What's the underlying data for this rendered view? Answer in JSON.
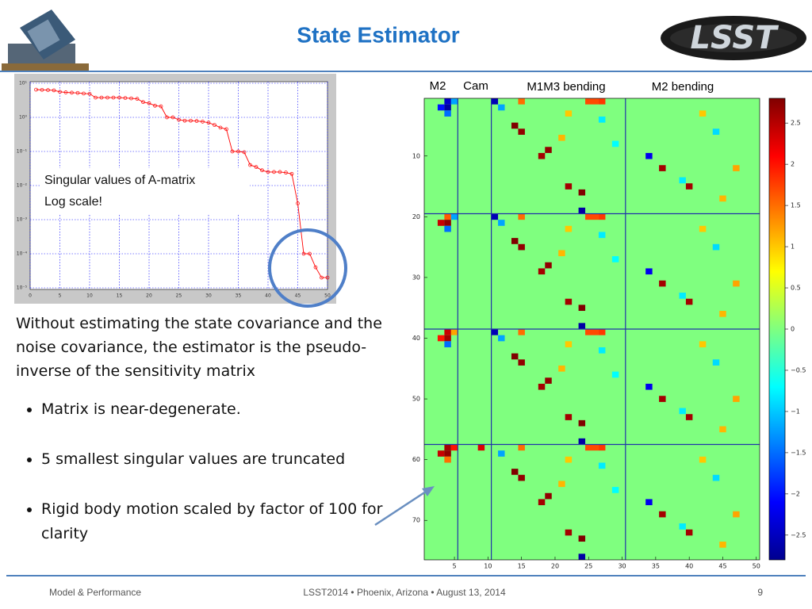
{
  "title": "State Estimator",
  "logo": "LSST",
  "body": {
    "paragraph": "Without estimating the state covariance and the noise covariance, the estimator is the pseudo-inverse of the sensitivity matrix",
    "bullets": [
      "Matrix is near-degenerate.",
      "5 smallest singular values are truncated",
      "Rigid body motion scaled by factor of 100 for clarity"
    ]
  },
  "footer": {
    "left": "Model & Performance",
    "center": "LSST2014 • Phoenix, Arizona • August 13, 2014",
    "page": "9"
  },
  "chart_data": [
    {
      "type": "line",
      "annotations": [
        "Singular values of A-matrix",
        "Log scale!"
      ],
      "color": "#ff0000",
      "log_y": true,
      "grid": true,
      "x": [
        1,
        2,
        3,
        4,
        5,
        6,
        7,
        8,
        9,
        10,
        11,
        12,
        13,
        14,
        15,
        16,
        17,
        18,
        19,
        20,
        21,
        22,
        23,
        24,
        25,
        26,
        27,
        28,
        29,
        30,
        31,
        32,
        33,
        34,
        35,
        36,
        37,
        38,
        39,
        40,
        41,
        42,
        43,
        44,
        45,
        46,
        47,
        48,
        49,
        50
      ],
      "values": [
        6.5,
        6.4,
        6.3,
        6.2,
        5.6,
        5.4,
        5.3,
        5.2,
        5.0,
        4.9,
        3.8,
        3.8,
        3.8,
        3.8,
        3.8,
        3.7,
        3.6,
        3.5,
        2.8,
        2.6,
        2.2,
        2.1,
        1.0,
        1.0,
        0.85,
        0.8,
        0.8,
        0.78,
        0.75,
        0.7,
        0.6,
        0.5,
        0.45,
        0.1,
        0.1,
        0.095,
        0.04,
        0.035,
        0.028,
        0.025,
        0.025,
        0.025,
        0.024,
        0.022,
        0.003,
        0.0001,
        0.0001,
        4e-05,
        2e-05,
        2e-05
      ],
      "xlim": [
        0,
        50
      ],
      "xticks": [
        0,
        5,
        10,
        15,
        20,
        25,
        30,
        35,
        40,
        45,
        50
      ],
      "ylim": [
        1e-05,
        10
      ],
      "yticks": [
        {
          "value": 10,
          "label": "10¹"
        },
        {
          "value": 1,
          "label": "10⁰"
        },
        {
          "value": 0.1,
          "label": "10⁻¹"
        },
        {
          "value": 0.01,
          "label": "10⁻²"
        },
        {
          "value": 0.001,
          "label": "10⁻³"
        },
        {
          "value": 0.0001,
          "label": "10⁻⁴"
        },
        {
          "value": 1e-05,
          "label": "10⁻⁵"
        }
      ]
    },
    {
      "type": "heatmap",
      "column_groups": [
        "M2",
        "Cam",
        "M1M3 bending",
        "M2 bending"
      ],
      "xlim": [
        0.5,
        50.5
      ],
      "ylim": [
        0.5,
        76.5
      ],
      "xticks": [
        5,
        10,
        15,
        20,
        25,
        30,
        35,
        40,
        45,
        50
      ],
      "yticks": [
        10,
        20,
        30,
        40,
        50,
        60,
        70
      ],
      "separators_x": [
        5.5,
        10.5,
        30.5
      ],
      "separators_y": [
        19.5,
        38.5,
        57.5
      ],
      "zlim": [
        -2.8,
        2.8
      ],
      "zticks": [
        {
          "value": 2.5,
          "label": "2.5"
        },
        2,
        {
          "value": 1.5,
          "label": "1.5"
        },
        1,
        {
          "value": 0.5,
          "label": "0.5"
        },
        0,
        {
          "value": -0.5,
          "label": "−0.5"
        },
        {
          "value": -1,
          "label": "−1"
        },
        {
          "value": -1.5,
          "label": "−1.5"
        },
        {
          "value": -2,
          "label": "−2"
        },
        {
          "value": -2.5,
          "label": "−2.5"
        }
      ],
      "x": [
        4,
        5,
        3,
        4,
        4,
        11,
        12,
        15,
        25,
        26,
        27,
        14,
        15,
        18,
        19,
        22,
        24,
        22,
        27,
        21,
        29,
        34,
        42,
        44,
        47,
        39,
        45,
        24,
        40,
        36,
        4,
        5,
        3,
        4,
        4,
        11,
        12,
        15,
        25,
        26,
        27,
        14,
        15,
        18,
        19,
        22,
        24,
        22,
        27,
        21,
        29,
        34,
        42,
        44,
        47,
        39,
        45,
        24,
        40,
        36,
        4,
        5,
        3,
        4,
        4,
        11,
        12,
        15,
        25,
        26,
        27,
        14,
        15,
        18,
        19,
        22,
        24,
        22,
        27,
        21,
        29,
        34,
        42,
        44,
        47,
        39,
        45,
        24,
        40,
        36,
        4,
        5,
        3,
        4,
        4,
        9,
        12,
        15,
        25,
        26,
        27,
        14,
        15,
        18,
        19,
        22,
        24,
        22,
        27,
        21,
        29,
        34,
        42,
        44,
        47,
        39,
        45,
        24,
        40,
        36
      ],
      "y": [
        1,
        1,
        2,
        2,
        3,
        1,
        2,
        1,
        1,
        1,
        1,
        5,
        6,
        10,
        9,
        15,
        16,
        3,
        4,
        7,
        8,
        10,
        3,
        6,
        12,
        14,
        17,
        19,
        15,
        12,
        20,
        20,
        21,
        21,
        22,
        20,
        21,
        20,
        20,
        20,
        20,
        24,
        25,
        29,
        28,
        34,
        35,
        22,
        23,
        26,
        27,
        29,
        22,
        25,
        31,
        33,
        36,
        38,
        34,
        31,
        39,
        39,
        40,
        40,
        41,
        39,
        40,
        39,
        39,
        39,
        39,
        43,
        44,
        48,
        47,
        53,
        54,
        41,
        42,
        45,
        46,
        48,
        41,
        44,
        50,
        52,
        55,
        57,
        53,
        50,
        58,
        58,
        59,
        59,
        60,
        58,
        59,
        58,
        58,
        58,
        58,
        62,
        63,
        67,
        66,
        72,
        73,
        60,
        61,
        64,
        65,
        67,
        60,
        63,
        69,
        71,
        74,
        76,
        72,
        69
      ],
      "values": [
        -2.4,
        -1.2,
        -2.0,
        -2.6,
        -1.5,
        -2.5,
        -1.2,
        1.5,
        1.7,
        1.7,
        1.8,
        2.8,
        2.7,
        2.6,
        2.7,
        2.6,
        2.8,
        1.0,
        -0.8,
        1.1,
        -0.7,
        -2.2,
        1.0,
        -0.9,
        1.2,
        -0.8,
        1.1,
        -2.6,
        2.6,
        2.6,
        1.6,
        -1.2,
        2.4,
        2.7,
        -1.5,
        -2.5,
        -1.2,
        1.5,
        1.7,
        1.7,
        1.8,
        2.8,
        2.7,
        2.6,
        2.7,
        2.6,
        2.8,
        1.0,
        -0.8,
        1.1,
        -0.7,
        -2.2,
        1.0,
        -0.9,
        1.2,
        -0.8,
        1.1,
        -2.6,
        2.6,
        2.6,
        2.4,
        1.2,
        2.0,
        2.6,
        -1.5,
        -2.5,
        -1.2,
        1.5,
        1.7,
        1.7,
        1.8,
        2.8,
        2.7,
        2.6,
        2.7,
        2.6,
        2.8,
        1.0,
        -0.8,
        1.1,
        -0.7,
        -2.2,
        1.0,
        -0.9,
        1.2,
        -0.8,
        1.1,
        -2.6,
        2.6,
        2.6,
        2.6,
        2.0,
        2.4,
        2.7,
        1.5,
        2.3,
        -1.2,
        1.5,
        1.7,
        1.7,
        1.8,
        2.8,
        2.7,
        2.6,
        2.7,
        2.6,
        2.8,
        1.0,
        -0.8,
        1.1,
        -0.7,
        -2.2,
        1.0,
        -0.9,
        1.2,
        -0.8,
        1.1,
        -2.6,
        2.6,
        2.6
      ]
    }
  ]
}
